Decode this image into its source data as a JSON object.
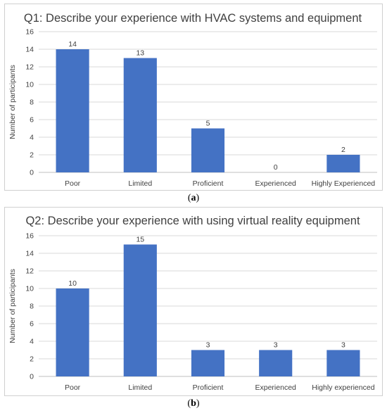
{
  "captions": {
    "a_letter": "a",
    "b_letter": "b"
  },
  "chart_data": [
    {
      "type": "bar",
      "title": "Q1: Describe your experience with HVAC systems and equipment",
      "ylabel": "Number of participants",
      "xlabel": "",
      "categories": [
        "Poor",
        "Limited",
        "Proficient",
        "Experienced",
        "Highly Experienced"
      ],
      "values": [
        14,
        13,
        5,
        0,
        2
      ],
      "ylim": [
        0,
        16
      ],
      "yticks": [
        0,
        2,
        4,
        6,
        8,
        10,
        12,
        14,
        16
      ],
      "grid": true,
      "bar_color": "#4472C4"
    },
    {
      "type": "bar",
      "title": "Q2: Describe your experience with using virtual reality equipment",
      "ylabel": "Number of participants",
      "xlabel": "",
      "categories": [
        "Poor",
        "Limited",
        "Proficient",
        "Experienced",
        "Highly experienced"
      ],
      "values": [
        10,
        15,
        3,
        3,
        3
      ],
      "ylim": [
        0,
        16
      ],
      "yticks": [
        0,
        2,
        4,
        6,
        8,
        10,
        12,
        14,
        16
      ],
      "grid": true,
      "bar_color": "#4472C4"
    }
  ]
}
